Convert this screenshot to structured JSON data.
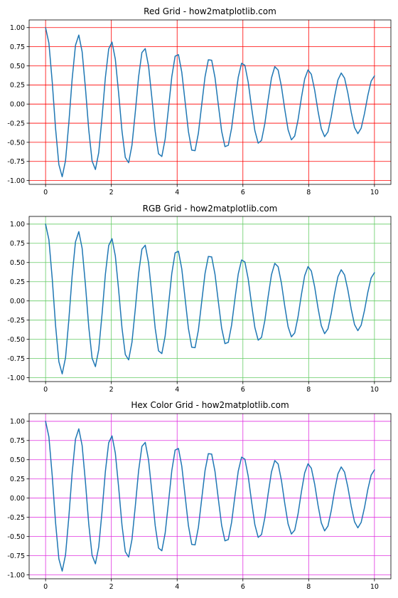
{
  "figure": {
    "line_color": "#1f77b4"
  },
  "chart_data": [
    {
      "type": "line",
      "title": "Red Grid - how2matplotlib.com",
      "grid_color": "#ff0000",
      "grid": true,
      "xlabel": "",
      "ylabel": "",
      "xlim": [
        -0.5,
        10.5
      ],
      "ylim": [
        -1.05,
        1.1
      ],
      "x_ticks": [
        0,
        2,
        4,
        6,
        8,
        10
      ],
      "x_tick_labels": [
        "0",
        "2",
        "4",
        "6",
        "8",
        "10"
      ],
      "y_ticks": [
        1.0,
        0.75,
        0.5,
        0.25,
        0.0,
        -0.25,
        -0.5,
        -0.75,
        -1.0
      ],
      "y_tick_labels": [
        "1.00",
        "0.75",
        "0.50",
        "0.25",
        "0.00",
        "-0.25",
        "-0.50",
        "-0.75",
        "-1.00"
      ],
      "series": [
        {
          "function": "cos(2*pi*x)*exp(-0.1*x)",
          "x_range": [
            0,
            10
          ],
          "num_points": 100
        }
      ]
    },
    {
      "type": "line",
      "title": "RGB Grid - how2matplotlib.com",
      "grid_color": "#66cc66",
      "grid": true,
      "xlabel": "",
      "ylabel": "",
      "xlim": [
        -0.5,
        10.5
      ],
      "ylim": [
        -1.05,
        1.1
      ],
      "x_ticks": [
        0,
        2,
        4,
        6,
        8,
        10
      ],
      "x_tick_labels": [
        "0",
        "2",
        "4",
        "6",
        "8",
        "10"
      ],
      "y_ticks": [
        1.0,
        0.75,
        0.5,
        0.25,
        0.0,
        -0.25,
        -0.5,
        -0.75,
        -1.0
      ],
      "y_tick_labels": [
        "1.00",
        "0.75",
        "0.50",
        "0.25",
        "0.00",
        "-0.25",
        "-0.50",
        "-0.75",
        "-1.00"
      ],
      "series": [
        {
          "function": "cos(2*pi*x)*exp(-0.1*x)",
          "x_range": [
            0,
            10
          ],
          "num_points": 100
        }
      ]
    },
    {
      "type": "line",
      "title": "Hex Color Grid - how2matplotlib.com",
      "grid_color": "#e033e0",
      "grid": true,
      "xlabel": "",
      "ylabel": "",
      "xlim": [
        -0.5,
        10.5
      ],
      "ylim": [
        -1.05,
        1.1
      ],
      "x_ticks": [
        0,
        2,
        4,
        6,
        8,
        10
      ],
      "x_tick_labels": [
        "0",
        "2",
        "4",
        "6",
        "8",
        "10"
      ],
      "y_ticks": [
        1.0,
        0.75,
        0.5,
        0.25,
        0.0,
        -0.25,
        -0.5,
        -0.75,
        -1.0
      ],
      "y_tick_labels": [
        "1.00",
        "0.75",
        "0.50",
        "0.25",
        "0.00",
        "-0.25",
        "-0.50",
        "-0.75",
        "-1.00"
      ],
      "series": [
        {
          "function": "cos(2*pi*x)*exp(-0.1*x)",
          "x_range": [
            0,
            10
          ],
          "num_points": 100
        }
      ]
    }
  ]
}
